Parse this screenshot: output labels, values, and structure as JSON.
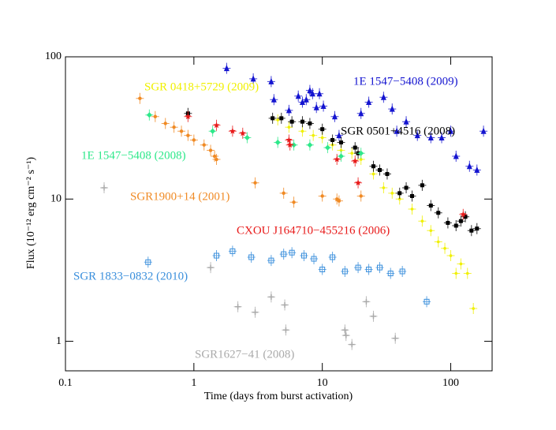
{
  "chart_data": {
    "type": "scatter",
    "xlabel": "Time (days from burst activation)",
    "ylabel": "Flux (10⁻¹² erg cm⁻² s⁻¹)",
    "xscale": "log",
    "yscale": "log",
    "xlim": [
      0.1,
      210
    ],
    "ylim": [
      0.62,
      100
    ],
    "xticks": [
      0.1,
      1,
      10,
      100
    ],
    "yticks": [
      1,
      10,
      100
    ],
    "series": [
      {
        "name": "1E 1547−5408 (2009)",
        "color": "#1414d0",
        "marker": "triangle",
        "x": [
          1.8,
          2.9,
          4.0,
          4.2,
          5.5,
          6.5,
          7.0,
          7.5,
          8.0,
          8.4,
          9.0,
          9.5,
          10.2,
          12.5,
          13.5,
          20,
          23,
          30,
          35,
          38,
          45,
          55,
          70,
          85,
          100,
          110,
          140,
          160,
          180
        ],
        "values": [
          83,
          70,
          67,
          50,
          42,
          53,
          48,
          50,
          58,
          55,
          44,
          55,
          45,
          38,
          28,
          40,
          48,
          52,
          43,
          30,
          35,
          28,
          27,
          27,
          30,
          20,
          17,
          16,
          30
        ]
      },
      {
        "name": "SGR 0418+5729 (2009)",
        "color": "#f0f000",
        "marker": "dot",
        "x": [
          4.5,
          5.5,
          7.0,
          8.5,
          10,
          12,
          14,
          17,
          20,
          25,
          30,
          35,
          40,
          50,
          60,
          70,
          80,
          90,
          100,
          110,
          120,
          135,
          150
        ],
        "values": [
          36,
          32,
          30,
          28,
          27,
          24,
          22,
          21,
          19,
          15,
          12,
          11,
          10,
          8.5,
          7,
          6,
          5,
          4.5,
          4,
          3,
          3.5,
          3,
          1.7
        ]
      },
      {
        "name": "SGR 0501+4516 (2008)",
        "color": "#000000",
        "marker": "square",
        "x": [
          0.9,
          4.1,
          4.8,
          5.8,
          7.0,
          8.0,
          10.0,
          12.0,
          14.0,
          18.0,
          19.0,
          25.0,
          28.0,
          32.0,
          40.0,
          45.0,
          50.0,
          60.0,
          70.0,
          80.0,
          95.0,
          110.0,
          120.0,
          130.0,
          145.0,
          160.0
        ],
        "values": [
          40,
          37,
          37,
          35,
          35,
          34,
          31,
          26,
          25,
          23,
          21,
          17,
          16,
          15,
          11,
          12,
          10.5,
          12.5,
          9,
          8,
          6.8,
          6.5,
          7,
          7.5,
          6.0,
          6.2
        ]
      },
      {
        "name": "1E 1547−5408 (2008)",
        "color": "#2ee88a",
        "marker": "diamond",
        "x": [
          0.45,
          1.4,
          2.6,
          4.5,
          6.0,
          8.0,
          11.0,
          14.0,
          20.0
        ],
        "values": [
          39,
          30,
          27,
          25,
          24,
          24,
          23,
          20,
          21
        ]
      },
      {
        "name": "SGR1900+14 (2001)",
        "color": "#f08a24",
        "marker": "circle",
        "x": [
          0.38,
          0.5,
          0.6,
          0.7,
          0.8,
          0.9,
          1.0,
          1.2,
          1.35,
          1.45,
          1.5,
          3.0,
          5.0,
          6.0,
          10.0,
          13.0,
          13.5,
          20.0
        ],
        "values": [
          51,
          38,
          34,
          32,
          30,
          28,
          26,
          24,
          22,
          20,
          19,
          13,
          11,
          9.5,
          10.5,
          10,
          9.7,
          10.5
        ]
      },
      {
        "name": "CXOU J164710−455216 (2006)",
        "color": "#e81a1a",
        "marker": "star",
        "x": [
          0.9,
          1.5,
          2.0,
          2.4,
          5.5,
          5.6,
          13.0,
          18.0,
          19.0,
          125.0
        ],
        "values": [
          38,
          33,
          30,
          29,
          26,
          24,
          19,
          18.5,
          13,
          7.8
        ]
      },
      {
        "name": "SGR 1833−0832 (2010)",
        "color": "#3a8fdc",
        "marker": "open-square",
        "x": [
          0.44,
          1.5,
          2.0,
          2.8,
          4.0,
          5.0,
          5.8,
          7.2,
          8.6,
          10.0,
          12.0,
          15.0,
          19.0,
          23.0,
          28.0,
          34.0,
          42.0,
          65.0
        ],
        "values": [
          3.6,
          4.0,
          4.3,
          3.9,
          3.7,
          4.1,
          4.2,
          4.0,
          3.8,
          3.2,
          3.9,
          3.1,
          3.3,
          3.2,
          3.3,
          3.0,
          3.1,
          1.9
        ]
      },
      {
        "name": "SGR1627−41 (2008)",
        "color": "#aaaaaa",
        "marker": "plus",
        "x": [
          0.2,
          1.35,
          2.2,
          3.0,
          4.0,
          5.1,
          5.2,
          15.0,
          15.3,
          17.0,
          22.0,
          25.0,
          37.0
        ],
        "values": [
          12,
          3.3,
          1.75,
          1.6,
          2.05,
          1.8,
          1.2,
          1.2,
          1.1,
          0.95,
          1.9,
          1.5,
          1.05
        ]
      }
    ]
  }
}
